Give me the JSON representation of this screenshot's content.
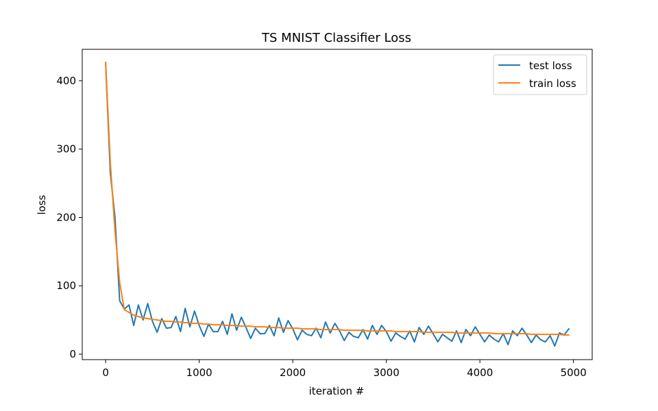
{
  "chart_data": {
    "type": "line",
    "title": "TS MNIST Classifier Loss",
    "xlabel": "iteration #",
    "ylabel": "loss",
    "xlim": [
      -250,
      5200
    ],
    "ylim": [
      -8,
      446
    ],
    "xticks": [
      0,
      1000,
      2000,
      3000,
      4000,
      5000
    ],
    "yticks": [
      0,
      100,
      200,
      300,
      400
    ],
    "legend_position": "top-right",
    "grid": false,
    "series": [
      {
        "name": "test loss",
        "color": "#1f77b4",
        "x": [
          0,
          50,
          100,
          150,
          200,
          250,
          300,
          350,
          400,
          450,
          500,
          550,
          600,
          650,
          700,
          750,
          800,
          850,
          900,
          950,
          1000,
          1050,
          1100,
          1150,
          1200,
          1250,
          1300,
          1350,
          1400,
          1450,
          1500,
          1550,
          1600,
          1650,
          1700,
          1750,
          1800,
          1850,
          1900,
          1950,
          2000,
          2050,
          2100,
          2150,
          2200,
          2250,
          2300,
          2350,
          2400,
          2450,
          2500,
          2550,
          2600,
          2650,
          2700,
          2750,
          2800,
          2850,
          2900,
          2950,
          3000,
          3050,
          3100,
          3150,
          3200,
          3250,
          3300,
          3350,
          3400,
          3450,
          3500,
          3550,
          3600,
          3650,
          3700,
          3750,
          3800,
          3850,
          3900,
          3950,
          4000,
          4050,
          4100,
          4150,
          4200,
          4250,
          4300,
          4350,
          4400,
          4450,
          4500,
          4550,
          4600,
          4650,
          4700,
          4750,
          4800,
          4850,
          4900,
          4950
        ],
        "y": [
          425,
          265,
          200,
          78,
          66,
          72,
          42,
          72,
          50,
          74,
          48,
          32,
          52,
          38,
          39,
          55,
          33,
          67,
          40,
          63,
          42,
          26,
          44,
          33,
          33,
          48,
          29,
          59,
          35,
          54,
          39,
          23,
          38,
          30,
          30,
          42,
          27,
          53,
          32,
          49,
          37,
          21,
          35,
          29,
          27,
          38,
          24,
          47,
          31,
          45,
          34,
          20,
          32,
          26,
          24,
          36,
          22,
          42,
          29,
          42,
          33,
          19,
          31,
          26,
          22,
          34,
          18,
          39,
          29,
          41,
          30,
          18,
          29,
          24,
          19,
          34,
          17,
          36,
          27,
          40,
          29,
          18,
          28,
          22,
          18,
          30,
          14,
          34,
          27,
          38,
          28,
          17,
          28,
          21,
          18,
          27,
          12,
          31,
          28,
          37
        ]
      },
      {
        "name": "train loss",
        "color": "#ff7f0e",
        "x": [
          0,
          50,
          100,
          150,
          200,
          250,
          300,
          350,
          400,
          450,
          500,
          550,
          600,
          650,
          700,
          750,
          800,
          850,
          900,
          950,
          1000,
          1050,
          1100,
          1150,
          1200,
          1250,
          1300,
          1350,
          1400,
          1450,
          1500,
          1550,
          1600,
          1650,
          1700,
          1750,
          1800,
          1850,
          1900,
          1950,
          2000,
          2050,
          2100,
          2150,
          2200,
          2250,
          2300,
          2350,
          2400,
          2450,
          2500,
          2550,
          2600,
          2650,
          2700,
          2750,
          2800,
          2850,
          2900,
          2950,
          3000,
          3050,
          3100,
          3150,
          3200,
          3250,
          3300,
          3350,
          3400,
          3450,
          3500,
          3550,
          3600,
          3650,
          3700,
          3750,
          3800,
          3850,
          3900,
          3950,
          4000,
          4050,
          4100,
          4150,
          4200,
          4250,
          4300,
          4350,
          4400,
          4450,
          4500,
          4550,
          4600,
          4650,
          4700,
          4750,
          4800,
          4850,
          4900,
          4950
        ],
        "y": [
          427,
          280,
          180,
          105,
          65,
          61,
          57,
          55,
          53,
          52,
          51,
          50,
          49,
          48,
          48,
          47,
          47,
          46,
          46,
          45,
          45,
          44,
          44,
          43,
          43,
          43,
          42,
          42,
          42,
          41,
          41,
          41,
          40,
          40,
          40,
          39,
          39,
          39,
          38,
          38,
          38,
          38,
          37,
          37,
          37,
          37,
          36,
          36,
          36,
          36,
          36,
          35,
          35,
          35,
          35,
          35,
          34,
          34,
          34,
          34,
          34,
          34,
          33,
          33,
          33,
          33,
          33,
          33,
          32,
          32,
          32,
          32,
          32,
          32,
          32,
          31,
          31,
          31,
          31,
          31,
          31,
          31,
          31,
          30,
          30,
          30,
          30,
          30,
          30,
          30,
          30,
          29,
          29,
          29,
          29,
          29,
          29,
          29,
          28,
          28
        ]
      }
    ]
  }
}
